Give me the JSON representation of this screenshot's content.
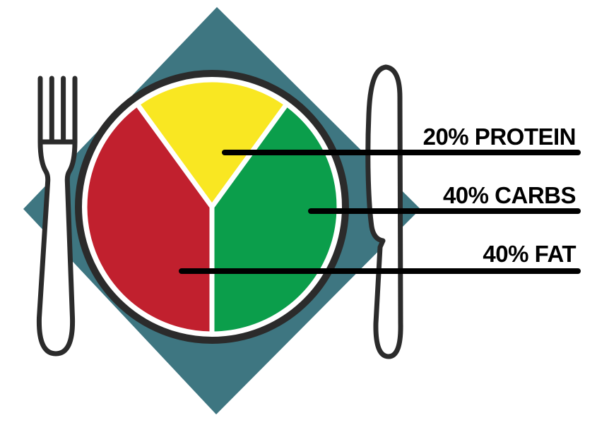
{
  "chart_data": {
    "type": "pie",
    "slices": [
      {
        "name": "Protein",
        "label": "20% PROTEIN",
        "percent": 20,
        "color": "#F9E722"
      },
      {
        "name": "Carbs",
        "label": "40% CARBS",
        "percent": 40,
        "color": "#0B9E4B"
      },
      {
        "name": "Fat",
        "label": "40% FAT",
        "percent": 40,
        "color": "#C1202E"
      }
    ],
    "start_angle_deg": 234,
    "direction": "clockwise",
    "legend_position": "right",
    "title": ""
  },
  "decor": {
    "napkin_color": "#3E7681",
    "outline_color": "#2B2B2B",
    "callout_color": "#000000",
    "plate_fill": "#FFFFFF",
    "background": "#FFFFFF",
    "icons": [
      "fork-icon",
      "knife-icon",
      "plate",
      "napkin-diamond"
    ]
  }
}
